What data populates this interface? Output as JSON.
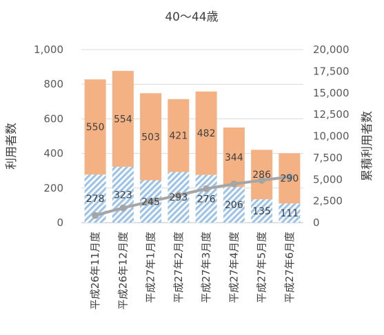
{
  "chart_data": {
    "type": "bar",
    "title": "40〜44歳",
    "ylabel": "利用者数",
    "y2label": "累積利用者数",
    "categories": [
      "平成26年11月度",
      "平成26年12月度",
      "平成27年1月度",
      "平成27年2月度",
      "平成27年3月度",
      "平成27年4月度",
      "平成27年5月度",
      "平成27年6月度"
    ],
    "ylim": [
      0,
      1000
    ],
    "y2lim": [
      0,
      20000
    ],
    "yticks": [
      "0",
      "200",
      "400",
      "600",
      "800",
      "1,000"
    ],
    "y2ticks": [
      "0",
      "2,500",
      "5,000",
      "7,500",
      "10,000",
      "12,500",
      "15,000",
      "17,500",
      "20,000"
    ],
    "stacked": true,
    "series": [
      {
        "values": [
          278,
          323,
          245,
          293,
          276,
          206,
          135,
          111
        ],
        "color": "#9dc3e6",
        "pattern": "diagonal-stripes",
        "axis": "left"
      },
      {
        "values": [
          550,
          554,
          503,
          421,
          482,
          344,
          286,
          290
        ],
        "color": "#f4b183",
        "axis": "left"
      },
      {
        "type": "line",
        "values": [
          828,
          1705,
          2453,
          3167,
          3925,
          4475,
          4896,
          5297
        ],
        "color": "#a5a5a5",
        "axis": "right",
        "marker": "circle"
      }
    ],
    "grid": true,
    "legend": "none"
  }
}
